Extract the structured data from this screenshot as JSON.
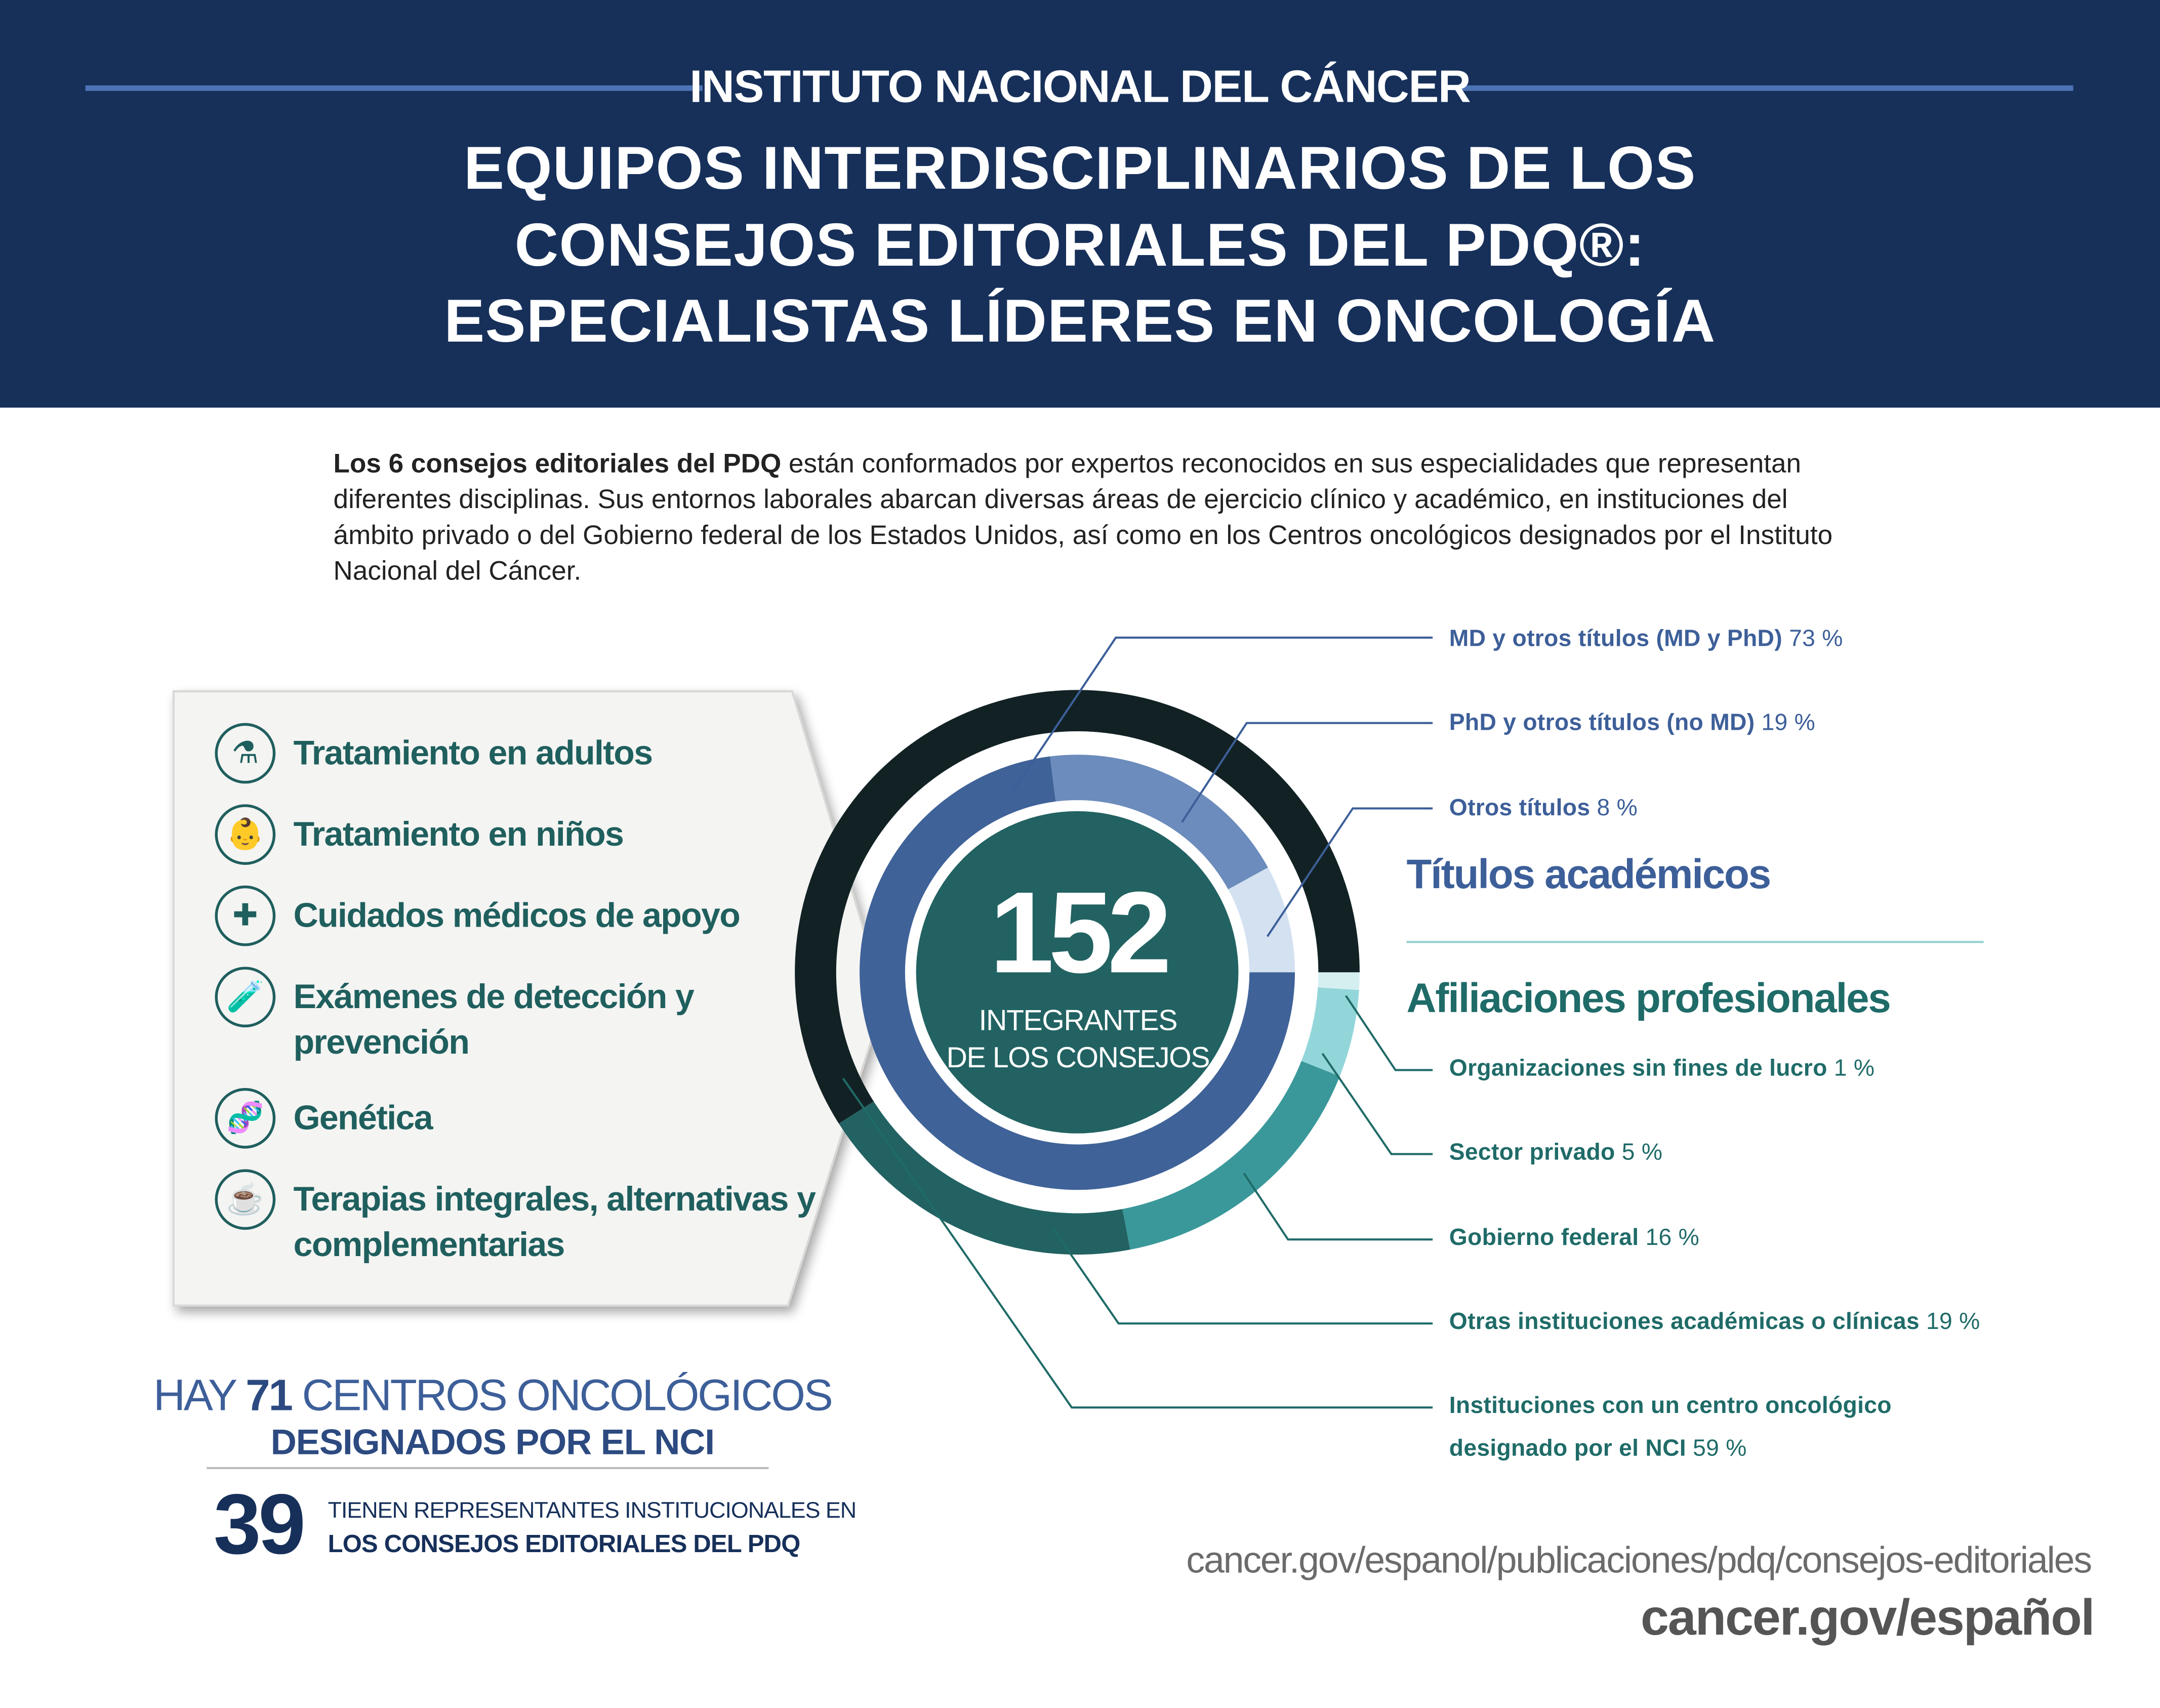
{
  "header": {
    "organization": "INSTITUTO NACIONAL DEL CÁNCER",
    "title_lines": [
      "EQUIPOS INTERDISCIPLINARIOS DE LOS",
      "CONSEJOS EDITORIALES DEL PDQ®:",
      "ESPECIALISTAS LÍDERES EN ONCOLOGÍA"
    ]
  },
  "intro": {
    "bold": "Los 6 consejos editoriales del PDQ",
    "text": " están conformados por expertos reconocidos en sus especialidades que representan diferentes disciplinas. Sus entornos laborales abarcan diversas áreas de ejercicio clínico y académico, en instituciones del ámbito privado o del Gobierno federal de los Estados Unidos, así como en los Centros oncológicos designados por el Instituto Nacional del Cáncer."
  },
  "boards": [
    {
      "icon": "iv-drip-icon",
      "label": "Tratamiento en adultos"
    },
    {
      "icon": "baby-icon",
      "label": "Tratamiento en niños"
    },
    {
      "icon": "caring-hands-icon",
      "label": "Cuidados médicos de apoyo"
    },
    {
      "icon": "test-tube-icon",
      "label": "Exámenes de detección y prevención"
    },
    {
      "icon": "dna-icon",
      "label": "Genética"
    },
    {
      "icon": "medicine-tea-icon",
      "label": "Terapias integrales, alternativas y complementarias"
    }
  ],
  "center": {
    "number": "152",
    "line1": "INTEGRANTES",
    "line2": "DE LOS CONSEJOS"
  },
  "chart_data": [
    {
      "type": "donut",
      "title": "Títulos académicos",
      "ring": "inner",
      "categories": [
        "MD y otros títulos (MD y PhD)",
        "PhD y otros títulos (no MD)",
        "Otros títulos"
      ],
      "values": [
        73,
        19,
        8
      ],
      "colors": [
        "#3f6298",
        "#6b8cbc",
        "#d3e1f1"
      ]
    },
    {
      "type": "donut",
      "title": "Afiliaciones profesionales",
      "ring": "outer",
      "categories": [
        "Organizaciones sin fines de lucro",
        "Sector privado",
        "Gobierno federal",
        "Otras instituciones académicas o clínicas",
        "Instituciones con un centro oncológico designado por el NCI"
      ],
      "values": [
        1,
        5,
        16,
        19,
        59
      ],
      "colors": [
        "#d5eff1",
        "#93d6da",
        "#3a989a",
        "#226262",
        "#122224"
      ]
    }
  ],
  "labels": {
    "titulos": [
      {
        "name": "MD y otros títulos (MD y PhD)",
        "pct": "73 %"
      },
      {
        "name": "PhD y otros títulos (no MD)",
        "pct": "19 %"
      },
      {
        "name": "Otros títulos",
        "pct": "8 %"
      }
    ],
    "afiliaciones": [
      {
        "name": "Organizaciones sin fines de lucro",
        "pct": "1 %"
      },
      {
        "name": "Sector privado",
        "pct": "5 %"
      },
      {
        "name": "Gobierno federal",
        "pct": "16 %"
      },
      {
        "name": "Otras instituciones académicas o clínicas",
        "pct": "19 %"
      },
      {
        "name": "Instituciones con un centro oncológico",
        "name2": "designado por el NCI",
        "pct": "59 %"
      }
    ]
  },
  "centers": {
    "hay": "HAY ",
    "count": "71",
    "rest": " CENTROS ONCOLÓGICOS",
    "line2": "DESIGNADOS POR EL NCI",
    "represented": "39",
    "rep_line1": "TIENEN REPRESENTANTES INSTITUCIONALES EN",
    "rep_line2": "LOS CONSEJOS EDITORIALES DEL PDQ"
  },
  "footer": {
    "url_long": "cancer.gov/espanol/publicaciones/pdq/consejos-editoriales",
    "url_short": "cancer.gov/español"
  }
}
